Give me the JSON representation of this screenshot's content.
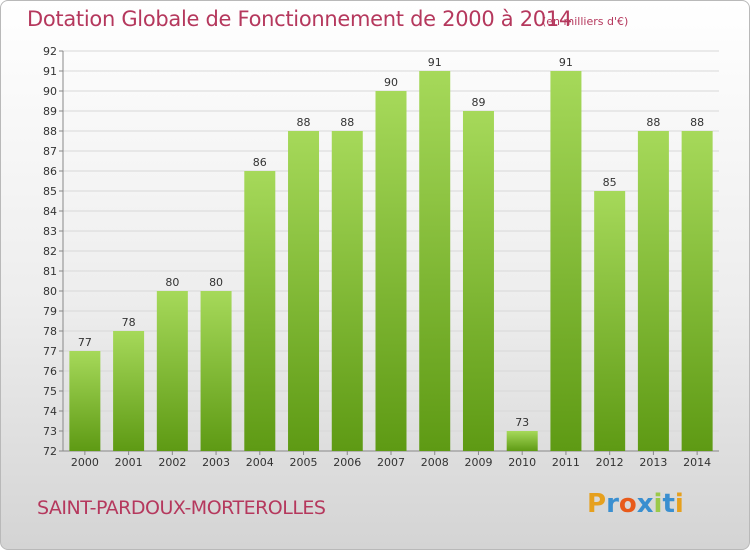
{
  "chart_data": {
    "type": "bar",
    "title": "Dotation Globale de Fonctionnement de 2000 à 2014",
    "subtitle": "(en milliers d'€)",
    "categories": [
      "2000",
      "2001",
      "2002",
      "2003",
      "2004",
      "2005",
      "2006",
      "2007",
      "2008",
      "2009",
      "2010",
      "2011",
      "2012",
      "2013",
      "2014"
    ],
    "values": [
      77,
      78,
      80,
      80,
      86,
      88,
      88,
      90,
      91,
      89,
      73,
      91,
      85,
      88,
      88
    ],
    "ylim": [
      72,
      92
    ],
    "yticks": [
      72,
      73,
      74,
      75,
      76,
      77,
      78,
      79,
      80,
      81,
      82,
      83,
      84,
      85,
      86,
      87,
      88,
      89,
      90,
      91,
      92
    ],
    "grid": true,
    "xlabel": "",
    "ylabel": ""
  },
  "commune": "SAINT-PARDOUX-MORTEROLLES",
  "logo": {
    "letters": [
      "P",
      "r",
      "o",
      "x",
      "i",
      "t",
      "i"
    ],
    "colors": [
      "#e6a01e",
      "#3a8fd0",
      "#e85a1a",
      "#3a8fd0",
      "#9bc94a",
      "#3a8fd0",
      "#e6a01e"
    ]
  },
  "colors": {
    "title": "#b5385d",
    "bar_top": "#a6d95a",
    "bar_bottom": "#5e9a14"
  }
}
